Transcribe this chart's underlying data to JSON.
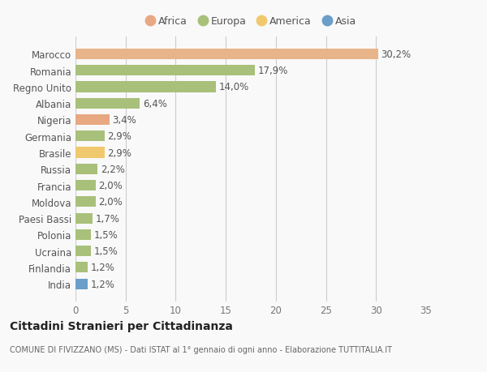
{
  "categories": [
    "India",
    "Finlandia",
    "Ucraina",
    "Polonia",
    "Paesi Bassi",
    "Moldova",
    "Francia",
    "Russia",
    "Brasile",
    "Germania",
    "Nigeria",
    "Albania",
    "Regno Unito",
    "Romania",
    "Marocco"
  ],
  "values": [
    1.2,
    1.2,
    1.5,
    1.5,
    1.7,
    2.0,
    2.0,
    2.2,
    2.9,
    2.9,
    3.4,
    6.4,
    14.0,
    17.9,
    30.2
  ],
  "labels": [
    "1,2%",
    "1,2%",
    "1,5%",
    "1,5%",
    "1,7%",
    "2,0%",
    "2,0%",
    "2,2%",
    "2,9%",
    "2,9%",
    "3,4%",
    "6,4%",
    "14,0%",
    "17,9%",
    "30,2%"
  ],
  "colors": [
    "#6b9ec8",
    "#a8c07a",
    "#a8c07a",
    "#a8c07a",
    "#a8c07a",
    "#a8c07a",
    "#a8c07a",
    "#a8c07a",
    "#f0c96e",
    "#a8c07a",
    "#e8a882",
    "#a8c07a",
    "#a8c07a",
    "#a8c07a",
    "#e8b48a"
  ],
  "legend_items": [
    {
      "label": "Africa",
      "color": "#e8a882"
    },
    {
      "label": "Europa",
      "color": "#a8c07a"
    },
    {
      "label": "America",
      "color": "#f0c96e"
    },
    {
      "label": "Asia",
      "color": "#6b9ec8"
    }
  ],
  "xlim": [
    0,
    35
  ],
  "xticks": [
    0,
    5,
    10,
    15,
    20,
    25,
    30,
    35
  ],
  "title": "Cittadini Stranieri per Cittadinanza",
  "subtitle": "COMUNE DI FIVIZZANO (MS) - Dati ISTAT al 1° gennaio di ogni anno - Elaborazione TUTTITALIA.IT",
  "background_color": "#f9f9f9",
  "bar_height": 0.65,
  "grid_color": "#cccccc",
  "label_fontsize": 8.5,
  "tick_fontsize": 8.5,
  "legend_fontsize": 9
}
